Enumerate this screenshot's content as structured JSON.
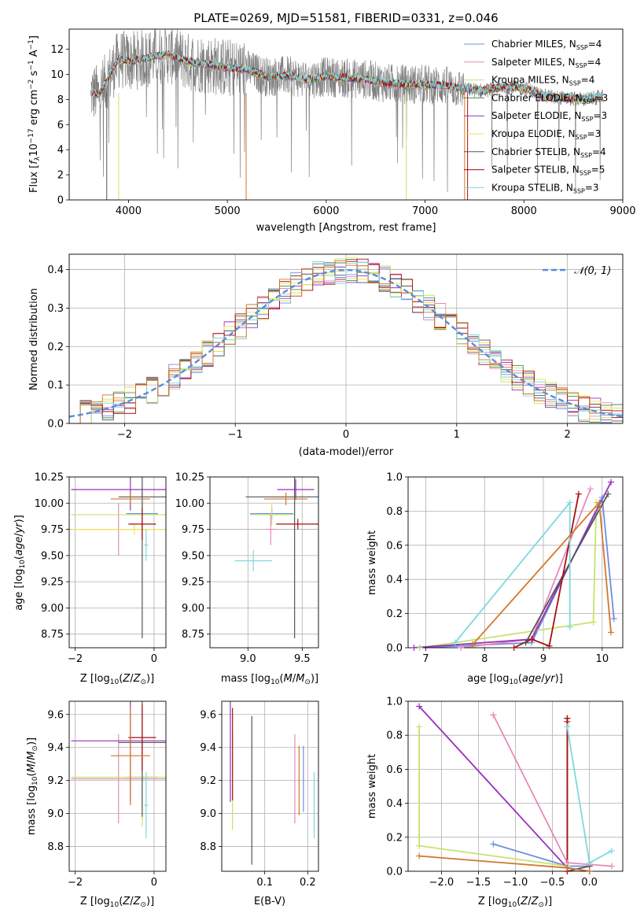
{
  "title": "PLATE=0269, MJD=51581, FIBERID=0331, z=0.046",
  "colors": {
    "Chabrier MILES": "#6d8fe0",
    "Salpeter MILES": "#e58ab8",
    "Kroupa MILES": "#c5e36a",
    "Chabrier ELODIE": "#4a8a4a",
    "Salpeter ELODIE": "#9b2fbe",
    "Kroupa ELODIE": "#f0e24a",
    "Chabrier STELIB": "#555555",
    "Salpeter STELIB": "#a80f0f",
    "Kroupa STELIB": "#7fd8dd",
    "orange": "#d2772c",
    "normal": "#5b8bd8",
    "data": "#808080"
  },
  "chart_data": [
    {
      "id": "spectrum",
      "type": "line",
      "title": "PLATE=0269, MJD=51581, FIBERID=0331, z=0.046",
      "xlabel": "wavelength [Angstrom, rest frame]",
      "ylabel": "Flux [f_λ 10^-17 erg cm^-2 s^-1 A^-1]",
      "xlim": [
        3400,
        9000
      ],
      "ylim": [
        0,
        13.6
      ],
      "xticks": [
        4000,
        5000,
        6000,
        7000,
        8000,
        9000
      ],
      "yticks": [
        0,
        2,
        4,
        6,
        8,
        10,
        12
      ],
      "legend_position": "top-right",
      "legend": [
        {
          "label": "Chabrier MILES, N",
          "sub": "SSP",
          "tail": "=4"
        },
        {
          "label": "Salpeter MILES, N",
          "sub": "SSP",
          "tail": "=4"
        },
        {
          "label": "Kroupa MILES, N",
          "sub": "SSP",
          "tail": "=4"
        },
        {
          "label": "Chabrier ELODIE, N",
          "sub": "SSP",
          "tail": "=3"
        },
        {
          "label": "Salpeter ELODIE, N",
          "sub": "SSP",
          "tail": "=3"
        },
        {
          "label": "Kroupa ELODIE, N",
          "sub": "SSP",
          "tail": "=3"
        },
        {
          "label": "Chabrier STELIB, N",
          "sub": "SSP",
          "tail": "=4"
        },
        {
          "label": "Salpeter STELIB, N",
          "sub": "SSP",
          "tail": "=5"
        },
        {
          "label": "Kroupa STELIB, N",
          "sub": "SSP",
          "tail": "=3"
        }
      ],
      "continuum_x": [
        3600,
        3700,
        3800,
        3900,
        4000,
        4200,
        4400,
        4600,
        4800,
        5000,
        5200,
        5400,
        5600,
        5800,
        6000,
        6200,
        6400,
        6600,
        6800,
        7000,
        7200,
        7400,
        7600,
        7800,
        8000,
        8200,
        8400,
        8600,
        8800
      ],
      "continuum_y": [
        8.6,
        8.4,
        9.8,
        11.2,
        11.0,
        11.3,
        11.6,
        11.0,
        10.8,
        10.5,
        10.4,
        9.8,
        9.9,
        9.6,
        9.8,
        9.7,
        9.6,
        9.3,
        9.2,
        9.2,
        9.1,
        8.8,
        8.7,
        9.0,
        8.9,
        8.3,
        8.1,
        8.0,
        8.2
      ]
    },
    {
      "id": "residuals",
      "type": "line",
      "xlabel": "(data-model)/error",
      "ylabel": "Normed distribution",
      "xlim": [
        -2.5,
        2.5
      ],
      "ylim": [
        0,
        0.44
      ],
      "xticks": [
        -2,
        -1,
        0,
        1,
        2
      ],
      "yticks": [
        0.0,
        0.1,
        0.2,
        0.3,
        0.4
      ],
      "legend": [
        "𝒩(0, 1)"
      ],
      "legend_position": "top-right",
      "grid": true
    },
    {
      "id": "age-vs-Z",
      "type": "scatter",
      "xlabel": "Z [log10(Z/Z⊙)]",
      "ylabel": "age [log10(age/yr)]",
      "xlim": [
        -2.15,
        0.3
      ],
      "ylim": [
        8.62,
        10.25
      ],
      "xticks": [
        -2,
        0
      ],
      "yticks": [
        8.75,
        9.0,
        9.25,
        9.5,
        9.75,
        10.0,
        10.25
      ],
      "grid": true,
      "points": [
        {
          "model": "Chabrier MILES",
          "x": -0.3,
          "y": 9.9,
          "xerr": 0.4,
          "yerr": 0.22
        },
        {
          "model": "Salpeter MILES",
          "x": -0.9,
          "y": 9.75,
          "xerr": 1.2,
          "yerr": 0.25
        },
        {
          "model": "Kroupa MILES",
          "x": -0.3,
          "y": 9.89,
          "xerr": 1.8,
          "yerr": 0.18
        },
        {
          "model": "Salpeter ELODIE",
          "x": -0.6,
          "y": 10.13,
          "xerr": 1.5,
          "yerr": 0.2
        },
        {
          "model": "Kroupa ELODIE",
          "x": -0.5,
          "y": 9.75,
          "xerr": 1.6,
          "yerr": 0.05
        },
        {
          "model": "Chabrier STELIB",
          "x": -0.3,
          "y": 10.06,
          "xerr": 0.6,
          "yerr": 1.35
        },
        {
          "model": "Salpeter STELIB",
          "x": -0.3,
          "y": 9.8,
          "xerr": 0.35,
          "yerr": 0.15
        },
        {
          "model": "Kroupa STELIB",
          "x": -0.2,
          "y": 9.6,
          "xerr": 0.05,
          "yerr": 0.15
        },
        {
          "model": "orange",
          "x": -0.6,
          "y": 10.04,
          "xerr": 0.5,
          "yerr": 0.06
        }
      ]
    },
    {
      "id": "age-vs-mass",
      "type": "scatter",
      "xlabel": "mass [log10(M/M⊙)]",
      "ylabel": "",
      "xlim": [
        8.65,
        9.65
      ],
      "ylim": [
        8.62,
        10.25
      ],
      "xticks": [
        9.0,
        9.5
      ],
      "yticks": [
        8.75,
        9.0,
        9.25,
        9.5,
        9.75,
        10.0,
        10.25
      ],
      "grid": true,
      "points": [
        {
          "model": "Chabrier MILES",
          "x": 9.22,
          "y": 9.9,
          "xerr": 0.2,
          "yerr": 0.05
        },
        {
          "model": "Salpeter MILES",
          "x": 9.21,
          "y": 9.75,
          "xerr": 0.05,
          "yerr": 0.15
        },
        {
          "model": "Kroupa MILES",
          "x": 9.22,
          "y": 9.89,
          "xerr": 0.2,
          "yerr": 0.1
        },
        {
          "model": "Salpeter ELODIE",
          "x": 9.44,
          "y": 10.13,
          "xerr": 0.17,
          "yerr": 0.1
        },
        {
          "model": "Chabrier STELIB",
          "x": 9.43,
          "y": 10.06,
          "xerr": 0.45,
          "yerr": 1.35
        },
        {
          "model": "Salpeter STELIB",
          "x": 9.46,
          "y": 9.8,
          "xerr": 0.2,
          "yerr": 0.05
        },
        {
          "model": "Kroupa STELIB",
          "x": 9.05,
          "y": 9.45,
          "xerr": 0.17,
          "yerr": 0.1
        },
        {
          "model": "orange",
          "x": 9.35,
          "y": 10.04,
          "xerr": 0.2,
          "yerr": 0.06
        }
      ]
    },
    {
      "id": "massweight-vs-age",
      "type": "line",
      "xlabel": "age [log10(age/yr)]",
      "ylabel": "mass weight",
      "xlim": [
        6.7,
        10.35
      ],
      "ylim": [
        0,
        1
      ],
      "xticks": [
        7,
        8,
        9,
        10
      ],
      "yticks": [
        0.0,
        0.2,
        0.4,
        0.6,
        0.8,
        1.0
      ],
      "grid": true,
      "series": [
        {
          "model": "Chabrier MILES",
          "x": [
            6.9,
            8.8,
            10.0,
            10.2
          ],
          "y": [
            0.0,
            0.03,
            0.88,
            0.17
          ]
        },
        {
          "model": "Salpeter MILES",
          "x": [
            7.6,
            8.8,
            9.8
          ],
          "y": [
            0.0,
            0.05,
            0.93
          ]
        },
        {
          "model": "Kroupa MILES",
          "x": [
            6.9,
            9.85,
            9.9,
            9.85
          ],
          "y": [
            0.0,
            0.15,
            0.85,
            0.15
          ]
        },
        {
          "model": "Salpeter ELODIE",
          "x": [
            6.8,
            8.8,
            10.15
          ],
          "y": [
            0.0,
            0.05,
            0.97
          ]
        },
        {
          "model": "Chabrier STELIB",
          "x": [
            8.7,
            10.1
          ],
          "y": [
            0.03,
            0.9
          ]
        },
        {
          "model": "Salpeter STELIB",
          "x": [
            8.5,
            8.8,
            9.1,
            9.6
          ],
          "y": [
            0.0,
            0.05,
            0.01,
            0.9
          ]
        },
        {
          "model": "Kroupa STELIB",
          "x": [
            7.5,
            9.45,
            9.45
          ],
          "y": [
            0.03,
            0.85,
            0.12
          ]
        },
        {
          "model": "orange",
          "x": [
            7.8,
            9.95,
            10.15
          ],
          "y": [
            0.02,
            0.85,
            0.09
          ]
        }
      ]
    },
    {
      "id": "mass-vs-Z",
      "type": "scatter",
      "xlabel": "Z [log10(Z/Z⊙)]",
      "ylabel": "mass [log10(M/M⊙)]",
      "xlim": [
        -2.15,
        0.3
      ],
      "ylim": [
        8.65,
        9.68
      ],
      "xticks": [
        -2,
        0
      ],
      "yticks": [
        8.8,
        9.0,
        9.2,
        9.4,
        9.6
      ],
      "grid": true,
      "points": [
        {
          "model": "Chabrier MILES",
          "x": -0.3,
          "y": 9.22,
          "xerr": 0.4,
          "yerr": 0.2
        },
        {
          "model": "Salpeter MILES",
          "x": -0.9,
          "y": 9.21,
          "xerr": 1.2,
          "yerr": 0.27
        },
        {
          "model": "Kroupa MILES",
          "x": -0.3,
          "y": 9.22,
          "xerr": 1.8,
          "yerr": 0.3
        },
        {
          "model": "Salpeter ELODIE",
          "x": -0.6,
          "y": 9.44,
          "xerr": 1.5,
          "yerr": 0.37
        },
        {
          "model": "Chabrier STELIB",
          "x": -0.3,
          "y": 9.43,
          "xerr": 0.6,
          "yerr": 0.45
        },
        {
          "model": "Salpeter STELIB",
          "x": -0.3,
          "y": 9.46,
          "xerr": 0.35,
          "yerr": 0.2
        },
        {
          "model": "Kroupa STELIB",
          "x": -0.2,
          "y": 9.05,
          "xerr": 0.05,
          "yerr": 0.2
        },
        {
          "model": "orange",
          "x": -0.6,
          "y": 9.35,
          "xerr": 0.5,
          "yerr": 0.3
        }
      ]
    },
    {
      "id": "mass-vs-EBV",
      "type": "scatter",
      "xlabel": "E(B-V)",
      "ylabel": "",
      "xlim": [
        0.0,
        0.225
      ],
      "ylim": [
        8.65,
        9.68
      ],
      "xticks": [
        0.1,
        0.2
      ],
      "yticks": [
        8.8,
        9.0,
        9.2,
        9.4,
        9.6
      ],
      "grid": true,
      "points": [
        {
          "model": "Chabrier MILES",
          "x": 0.19,
          "y": 9.21,
          "yerr": 0.2
        },
        {
          "model": "Salpeter MILES",
          "x": 0.17,
          "y": 9.21,
          "yerr": 0.27
        },
        {
          "model": "Kroupa MILES",
          "x": 0.025,
          "y": 9.2,
          "yerr": 0.3
        },
        {
          "model": "Salpeter ELODIE",
          "x": 0.02,
          "y": 9.44,
          "yerr": 0.37
        },
        {
          "model": "Chabrier STELIB",
          "x": 0.07,
          "y": 9.14,
          "yerr": 0.45
        },
        {
          "model": "Salpeter STELIB",
          "x": 0.025,
          "y": 9.36,
          "yerr": 0.28
        },
        {
          "model": "Kroupa STELIB",
          "x": 0.215,
          "y": 9.05,
          "yerr": 0.2
        },
        {
          "model": "orange",
          "x": 0.18,
          "y": 9.2,
          "yerr": 0.21
        }
      ]
    },
    {
      "id": "massweight-vs-Z",
      "type": "line",
      "xlabel": "Z [log10(Z/Z⊙)]",
      "ylabel": "mass weight",
      "xlim": [
        -2.45,
        0.45
      ],
      "ylim": [
        0,
        1
      ],
      "xticks": [
        -2.0,
        -1.5,
        -1.0,
        -0.5,
        0.0
      ],
      "yticks": [
        0.0,
        0.2,
        0.4,
        0.6,
        0.8,
        1.0
      ],
      "grid": true,
      "series": [
        {
          "model": "Chabrier MILES",
          "x": [
            -1.3,
            -0.3,
            0.0
          ],
          "y": [
            0.16,
            0.03,
            0.03
          ]
        },
        {
          "model": "Salpeter MILES",
          "x": [
            -1.3,
            -0.3,
            0.3
          ],
          "y": [
            0.92,
            0.05,
            0.03
          ]
        },
        {
          "model": "Kroupa MILES",
          "x": [
            -2.3,
            -2.3,
            -2.3,
            -0.3
          ],
          "y": [
            0.85,
            0.15,
            0.15,
            0.03
          ]
        },
        {
          "model": "Salpeter ELODIE",
          "x": [
            -2.3,
            -0.3,
            0.0
          ],
          "y": [
            0.97,
            0.02,
            0.0
          ]
        },
        {
          "model": "Chabrier STELIB",
          "x": [
            -0.3,
            -0.3,
            0.0
          ],
          "y": [
            0.9,
            0.0,
            0.03
          ]
        },
        {
          "model": "Salpeter STELIB",
          "x": [
            -0.3,
            -0.3,
            -0.3
          ],
          "y": [
            0.9,
            0.0,
            0.88
          ]
        },
        {
          "model": "Kroupa STELIB",
          "x": [
            -0.3,
            0.0,
            0.3
          ],
          "y": [
            0.85,
            0.05,
            0.12
          ]
        },
        {
          "model": "orange",
          "x": [
            -2.3,
            -0.3,
            0.0
          ],
          "y": [
            0.09,
            0.02,
            0.0
          ]
        }
      ]
    }
  ]
}
